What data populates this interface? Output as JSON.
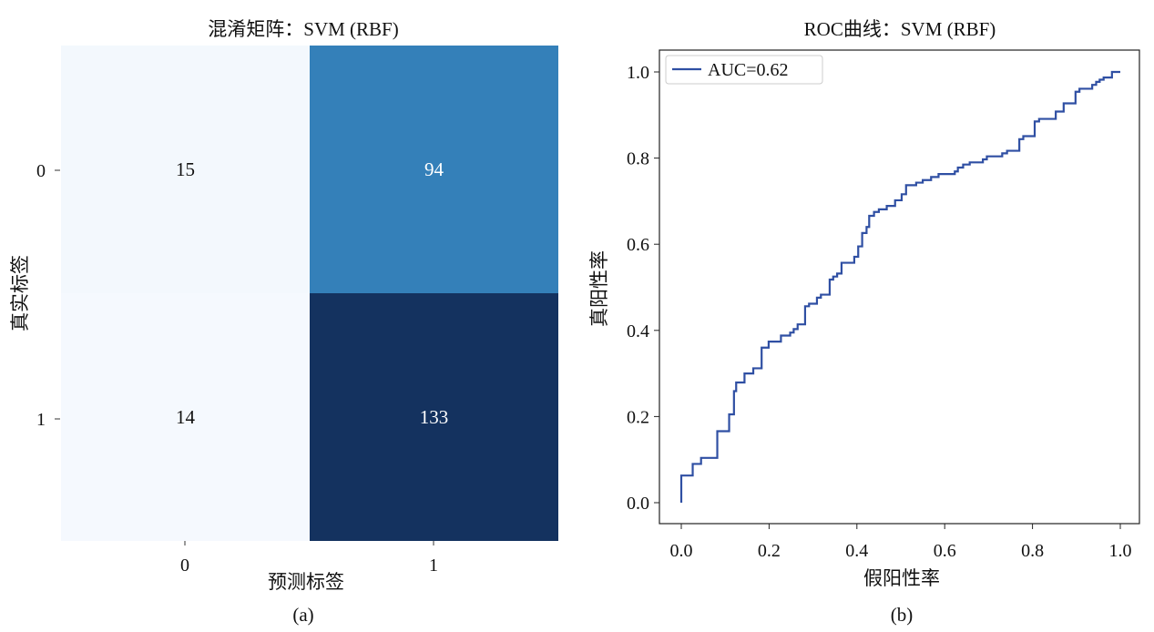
{
  "chart_data": [
    {
      "type": "heatmap",
      "title": "混淆矩阵：SVM (RBF)",
      "xlabel": "预测标签",
      "ylabel": "真实标签",
      "caption": "(a)",
      "x_categories": [
        "0",
        "1"
      ],
      "y_categories": [
        "0",
        "1"
      ],
      "values": [
        [
          15,
          94
        ],
        [
          14,
          133
        ]
      ],
      "colors": [
        [
          "#f3f8fd",
          "#3480b9"
        ],
        [
          "#f5f9fe",
          "#14325f"
        ]
      ],
      "text_colors": [
        [
          "#111111",
          "#ffffff"
        ],
        [
          "#111111",
          "#ffffff"
        ]
      ],
      "colormap": "Blues"
    },
    {
      "type": "line",
      "title": "ROC曲线：SVM (RBF)",
      "xlabel": "假阳性率",
      "ylabel": "真阳性率",
      "caption": "(b)",
      "xlim": [
        0,
        1
      ],
      "ylim": [
        0,
        1
      ],
      "xticks": [
        "0.0",
        "0.2",
        "0.4",
        "0.6",
        "0.8",
        "1.0"
      ],
      "yticks": [
        "0.0",
        "0.2",
        "0.4",
        "0.6",
        "0.8",
        "1.0"
      ],
      "legend": {
        "label": "AUC=0.62",
        "placement": "top-left"
      },
      "color": "#2f4fa3",
      "steps": [
        [
          0,
          0.063
        ],
        [
          0.026,
          0.09
        ],
        [
          0.045,
          0.104
        ],
        [
          0.082,
          0.166
        ],
        [
          0.109,
          0.205
        ],
        [
          0.12,
          0.259
        ],
        [
          0.125,
          0.279
        ],
        [
          0.144,
          0.3
        ],
        [
          0.164,
          0.312
        ],
        [
          0.183,
          0.36
        ],
        [
          0.199,
          0.374
        ],
        [
          0.227,
          0.388
        ],
        [
          0.248,
          0.395
        ],
        [
          0.256,
          0.403
        ],
        [
          0.265,
          0.414
        ],
        [
          0.282,
          0.456
        ],
        [
          0.291,
          0.462
        ],
        [
          0.309,
          0.476
        ],
        [
          0.318,
          0.483
        ],
        [
          0.338,
          0.518
        ],
        [
          0.346,
          0.525
        ],
        [
          0.355,
          0.532
        ],
        [
          0.365,
          0.557
        ],
        [
          0.394,
          0.571
        ],
        [
          0.403,
          0.595
        ],
        [
          0.412,
          0.626
        ],
        [
          0.422,
          0.64
        ],
        [
          0.428,
          0.666
        ],
        [
          0.439,
          0.675
        ],
        [
          0.45,
          0.681
        ],
        [
          0.468,
          0.689
        ],
        [
          0.487,
          0.702
        ],
        [
          0.502,
          0.716
        ],
        [
          0.512,
          0.737
        ],
        [
          0.535,
          0.743
        ],
        [
          0.55,
          0.749
        ],
        [
          0.569,
          0.756
        ],
        [
          0.586,
          0.763
        ],
        [
          0.623,
          0.769
        ],
        [
          0.63,
          0.778
        ],
        [
          0.642,
          0.785
        ],
        [
          0.657,
          0.79
        ],
        [
          0.687,
          0.797
        ],
        [
          0.696,
          0.804
        ],
        [
          0.731,
          0.811
        ],
        [
          0.742,
          0.817
        ],
        [
          0.77,
          0.844
        ],
        [
          0.779,
          0.851
        ],
        [
          0.805,
          0.885
        ],
        [
          0.815,
          0.891
        ],
        [
          0.853,
          0.908
        ],
        [
          0.871,
          0.927
        ],
        [
          0.898,
          0.954
        ],
        [
          0.907,
          0.961
        ],
        [
          0.936,
          0.97
        ],
        [
          0.945,
          0.977
        ],
        [
          0.953,
          0.982
        ],
        [
          0.962,
          0.987
        ],
        [
          0.981,
          1.0
        ],
        [
          1.0,
          1.0
        ]
      ]
    }
  ]
}
